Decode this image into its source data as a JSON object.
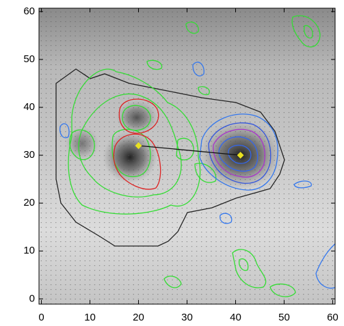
{
  "chart_data": {
    "type": "scatter",
    "x": [
      20,
      41
    ],
    "values": [
      32,
      30
    ],
    "color": "#e8e020",
    "xlim": [
      -0.5,
      60.5
    ],
    "ylim": [
      -1.1,
      60.7
    ],
    "xticks": [
      0,
      10,
      20,
      30,
      40,
      50,
      60
    ],
    "yticks": [
      0,
      10,
      20,
      30,
      40,
      50,
      60
    ]
  }
}
